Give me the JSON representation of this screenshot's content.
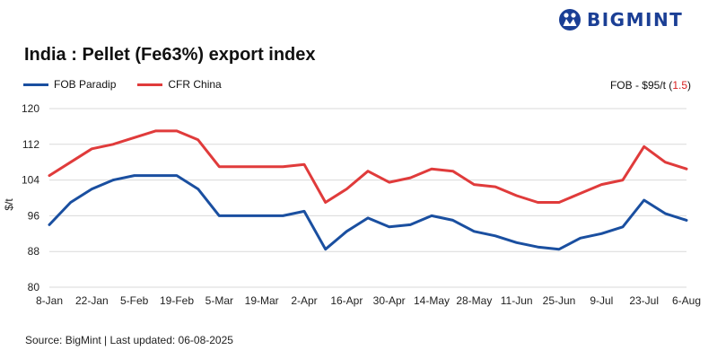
{
  "brand": {
    "name": "BIGMINT",
    "color": "#1b3f95"
  },
  "title": "India : Pellet (Fe63%) export index",
  "note": {
    "prefix": "FOB - $95/t (",
    "change": "1.5",
    "suffix": ")"
  },
  "source": "Source: BigMint | Last updated: 06-08-2025",
  "colors": {
    "fob": "#1a4fa0",
    "cfr": "#e03b3b",
    "grid": "#d9d9d9",
    "change": "#d81f1f"
  },
  "chart_data": {
    "type": "line",
    "title": "India : Pellet (Fe63%) export index",
    "xlabel": "",
    "ylabel": "$/t",
    "ylim": [
      80,
      120
    ],
    "yticks": [
      80,
      88,
      96,
      104,
      112,
      120
    ],
    "grid": true,
    "legend": "top-left",
    "x": [
      "8-Jan",
      "15-Jan",
      "22-Jan",
      "29-Jan",
      "5-Feb",
      "12-Feb",
      "19-Feb",
      "26-Feb",
      "5-Mar",
      "12-Mar",
      "19-Mar",
      "26-Mar",
      "2-Apr",
      "9-Apr",
      "16-Apr",
      "23-Apr",
      "30-Apr",
      "7-May",
      "14-May",
      "21-May",
      "28-May",
      "4-Jun",
      "11-Jun",
      "18-Jun",
      "25-Jun",
      "2-Jul",
      "9-Jul",
      "16-Jul",
      "23-Jul",
      "30-Jul",
      "6-Aug"
    ],
    "xticks": [
      "8-Jan",
      "22-Jan",
      "5-Feb",
      "19-Feb",
      "5-Mar",
      "19-Mar",
      "2-Apr",
      "16-Apr",
      "30-Apr",
      "14-May",
      "28-May",
      "11-Jun",
      "25-Jun",
      "9-Jul",
      "23-Jul",
      "6-Aug"
    ],
    "series": [
      {
        "name": "FOB Paradip",
        "color": "#1a4fa0",
        "values": [
          94,
          99,
          102,
          104,
          105,
          105,
          105,
          102,
          96,
          96,
          96,
          96,
          97,
          88.5,
          92.5,
          95.5,
          93.5,
          94,
          96,
          95,
          92.5,
          91.5,
          90,
          89,
          88.5,
          91,
          92,
          93.5,
          99.5,
          96.5,
          95
        ]
      },
      {
        "name": "CFR China",
        "color": "#e03b3b",
        "values": [
          105,
          108,
          111,
          112,
          113.5,
          115,
          115,
          113,
          107,
          107,
          107,
          107,
          107.5,
          99,
          102,
          106,
          103.5,
          104.5,
          106.5,
          106,
          103,
          102.5,
          100.5,
          99,
          99,
          101,
          103,
          104,
          111.5,
          108,
          106.5
        ]
      }
    ]
  }
}
